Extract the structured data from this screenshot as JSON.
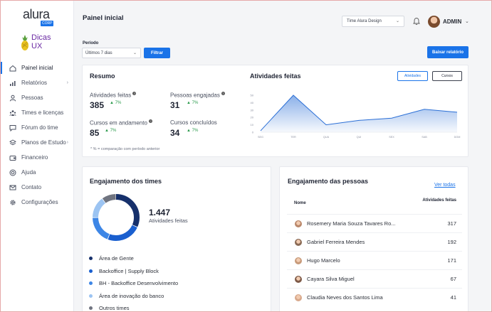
{
  "brand": {
    "name": "alura",
    "badge": "CORP",
    "sub_brand": "Dicas UX"
  },
  "sidebar": {
    "items": [
      {
        "label": "Painel inicial",
        "icon": "home-icon",
        "active": true,
        "has_submenu": false
      },
      {
        "label": "Relatórios",
        "icon": "bar-chart-icon",
        "active": false,
        "has_submenu": true
      },
      {
        "label": "Pessoas",
        "icon": "user-icon",
        "active": false,
        "has_submenu": false
      },
      {
        "label": "Times e licenças",
        "icon": "team-icon",
        "active": false,
        "has_submenu": false
      },
      {
        "label": "Fórum do time",
        "icon": "forum-icon",
        "active": false,
        "has_submenu": false
      },
      {
        "label": "Planos de Estudo",
        "icon": "layers-icon",
        "active": false,
        "has_submenu": true
      },
      {
        "label": "Financeiro",
        "icon": "wallet-icon",
        "active": false,
        "has_submenu": false
      },
      {
        "label": "Ajuda",
        "icon": "lifebuoy-icon",
        "active": false,
        "has_submenu": false
      },
      {
        "label": "Contato",
        "icon": "mail-icon",
        "active": false,
        "has_submenu": false
      },
      {
        "label": "Configurações",
        "icon": "gear-icon",
        "active": false,
        "has_submenu": false
      }
    ]
  },
  "header": {
    "title": "Painel inicial",
    "team_select": "Time Alura Design",
    "user_name": "ADMIN"
  },
  "filters": {
    "period_label": "Período",
    "period_value": "Últimos 7 dias",
    "filter_button": "Filtrar",
    "report_button": "Baixar relatório"
  },
  "summary": {
    "title": "Resumo",
    "stats": [
      {
        "label": "Atividades feitas",
        "value": "385",
        "delta": "7%"
      },
      {
        "label": "Pessoas engajadas",
        "value": "31",
        "delta": "7%"
      },
      {
        "label": "Cursos em andamento",
        "value": "85",
        "delta": "7%"
      },
      {
        "label": "Cursos concluídos",
        "value": "34",
        "delta": "7%"
      }
    ],
    "footnote": "* % = comparação com período anterior"
  },
  "activity_chart": {
    "title": "Atividades feitas",
    "toggle_active": "Atividades",
    "toggle_inactive": "Cursos"
  },
  "chart_data": {
    "type": "area",
    "categories": [
      "SEG",
      "TER",
      "QUA",
      "QUI",
      "SEX",
      "SAB",
      "DOM"
    ],
    "values": [
      2,
      50,
      10,
      16,
      19,
      31,
      27
    ],
    "yticks": [
      0,
      10,
      20,
      30,
      40,
      50
    ],
    "ylim": [
      0,
      50
    ],
    "grid": false,
    "color": "#2b6fd6"
  },
  "team_engagement": {
    "title": "Engajamento dos times",
    "total": "1.447",
    "total_caption": "Atividades feitas",
    "legend": [
      {
        "label": "Área de Gente",
        "color": "#16306b",
        "share": 0.32
      },
      {
        "label": "Backoffice | Supply Block",
        "color": "#1a5fcf",
        "share": 0.24
      },
      {
        "label": "BH - Backoffice Desenvolvimento",
        "color": "#3d86e6",
        "share": 0.19
      },
      {
        "label": "Área de inovação do banco",
        "color": "#9cc4f2",
        "share": 0.15
      },
      {
        "label": "Outros times",
        "color": "#707480",
        "share": 0.1
      }
    ]
  },
  "people_engagement": {
    "title": "Engajamento das pessoas",
    "see_all": "Ver todas",
    "col_name": "Nome",
    "col_activities": "Atividades feitas",
    "rows": [
      {
        "name": "Rosemery Maria Souza Tavares Ro...",
        "value": "317"
      },
      {
        "name": "Gabriel Ferreira Mendes",
        "value": "192"
      },
      {
        "name": "Hugo Marcelo",
        "value": "171"
      },
      {
        "name": "Cayara Silva Miguel",
        "value": "67"
      },
      {
        "name": "Claudia Neves dos Santos Lima",
        "value": "41"
      }
    ]
  }
}
